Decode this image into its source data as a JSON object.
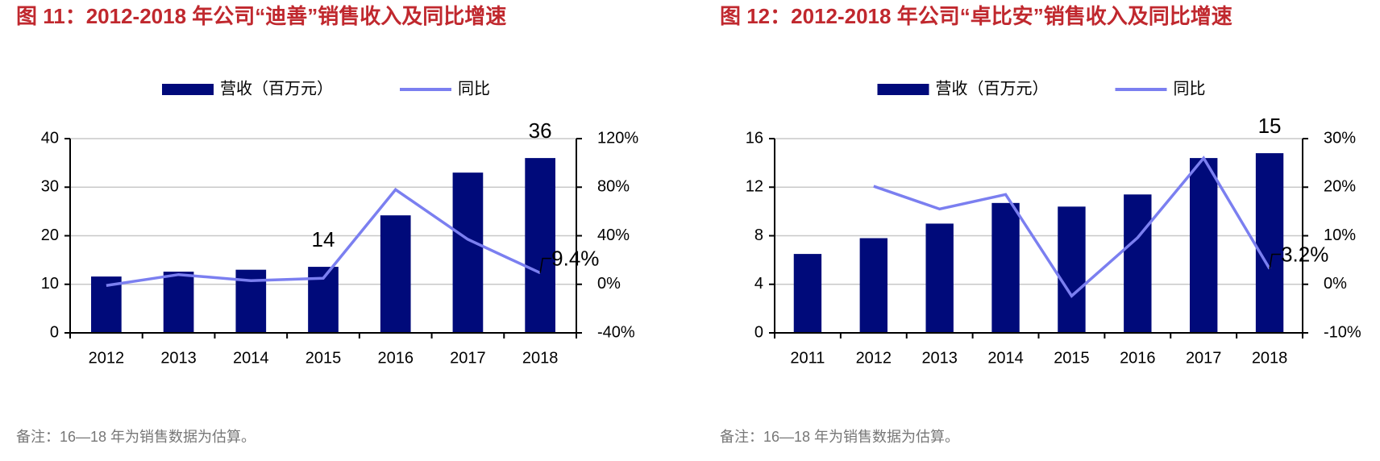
{
  "chart_data": [
    {
      "type": "combo",
      "title": "图 11：2012-2018 年公司“迪善”销售收入及同比增速",
      "note": "备注：16—18 年为销售数据为估算。",
      "categories": [
        "2012",
        "2013",
        "2014",
        "2015",
        "2016",
        "2017",
        "2018"
      ],
      "series": [
        {
          "name": "营收（百万元）",
          "type": "bar",
          "color": "#000a7a",
          "values": [
            11.6,
            12.6,
            13,
            13.6,
            24.2,
            33,
            36
          ],
          "value_labels": [
            null,
            null,
            null,
            "14",
            null,
            null,
            "36"
          ]
        },
        {
          "name": "同比",
          "type": "line",
          "axis": "y2",
          "color": "#7b7ff0",
          "values": [
            -1,
            8,
            3,
            5,
            78,
            37,
            9.4
          ],
          "value_labels": [
            null,
            null,
            null,
            null,
            null,
            null,
            "9.4%"
          ]
        }
      ],
      "ylim": [
        0,
        40
      ],
      "yticks": [
        0,
        10,
        20,
        30,
        40
      ],
      "y2lim": [
        -40,
        120
      ],
      "y2ticks": [
        {
          "value": -40,
          "label": "-40%"
        },
        {
          "value": 0,
          "label": "0%"
        },
        {
          "value": 40,
          "label": "40%"
        },
        {
          "value": 80,
          "label": "80%"
        },
        {
          "value": 120,
          "label": "120%"
        }
      ],
      "grid": true,
      "legend": "top"
    },
    {
      "type": "combo",
      "title": "图 12：2012-2018 年公司“卓比安”销售收入及同比增速",
      "note": "备注：16—18 年为销售数据为估算。",
      "categories": [
        "2011",
        "2012",
        "2013",
        "2014",
        "2015",
        "2016",
        "2017",
        "2018"
      ],
      "series": [
        {
          "name": "营收（百万元）",
          "type": "bar",
          "color": "#000a7a",
          "values": [
            6.5,
            7.8,
            9,
            10.7,
            10.4,
            11.4,
            14.4,
            14.8
          ],
          "value_labels": [
            null,
            null,
            null,
            null,
            null,
            null,
            null,
            "15"
          ]
        },
        {
          "name": "同比",
          "type": "line",
          "axis": "y2",
          "color": "#7b7ff0",
          "values": [
            null,
            20.2,
            15.5,
            18.5,
            -2.4,
            9.6,
            26,
            3.2
          ],
          "value_labels": [
            null,
            null,
            null,
            null,
            null,
            null,
            null,
            "3.2%"
          ]
        }
      ],
      "ylim": [
        0,
        16
      ],
      "yticks": [
        0,
        4,
        8,
        12,
        16
      ],
      "y2lim": [
        -10,
        30
      ],
      "y2ticks": [
        {
          "value": -10,
          "label": "-10%"
        },
        {
          "value": 0,
          "label": "0%"
        },
        {
          "value": 10,
          "label": "10%"
        },
        {
          "value": 20,
          "label": "20%"
        },
        {
          "value": 30,
          "label": "30%"
        }
      ],
      "grid": true,
      "legend": "top"
    }
  ]
}
